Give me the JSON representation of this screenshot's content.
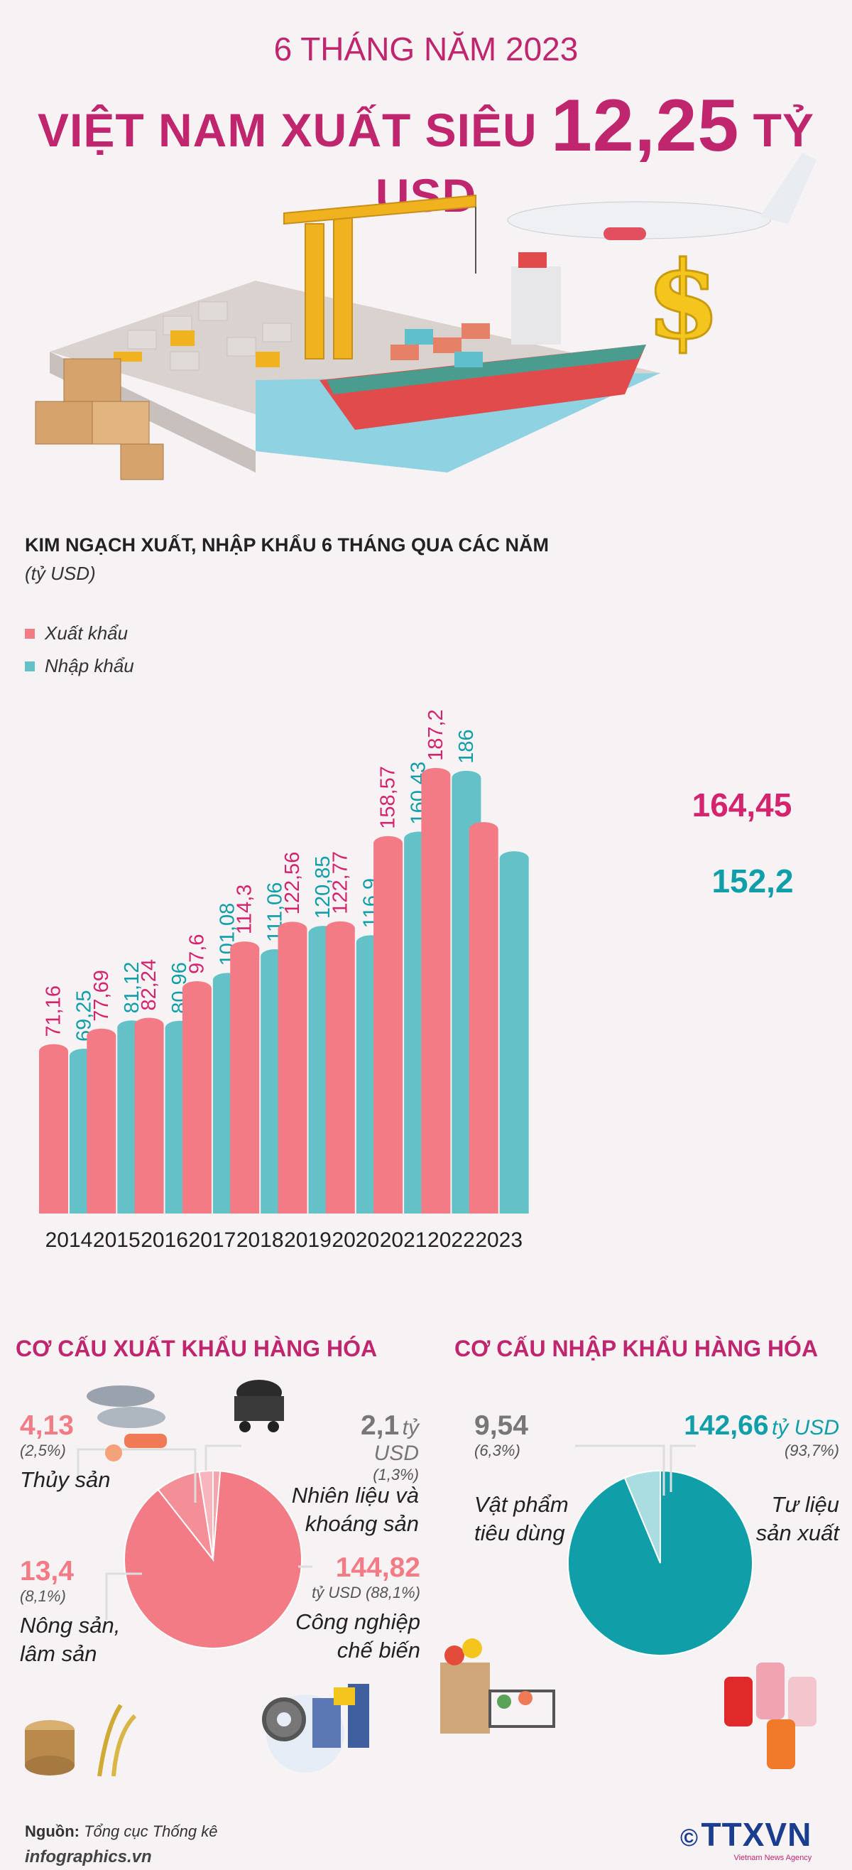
{
  "header": {
    "subtitle": "6 THÁNG NĂM 2023",
    "title_prefix": "VIỆT NAM XUẤT SIÊU",
    "title_value": "12,25",
    "title_unit": "TỶ USD"
  },
  "colors": {
    "export": "#f27b85",
    "import": "#64c1c8",
    "brand": "#c0266e",
    "import_pie": "#109fa9",
    "export_pie": "#f27b85"
  },
  "chart_data": [
    {
      "type": "bar",
      "title": "KIM NGẠCH XUẤT, NHẬP KHẨU 6 THÁNG QUA CÁC NĂM",
      "unit": "(tỷ USD)",
      "categories": [
        "2014",
        "2015",
        "2016",
        "2017",
        "2018",
        "2019",
        "2020",
        "2021",
        "2022",
        "2023"
      ],
      "series": [
        {
          "name": "Xuất khẩu",
          "values": [
            71.16,
            77.69,
            82.24,
            97.6,
            114.3,
            122.56,
            122.77,
            158.57,
            187.2,
            164.45
          ],
          "labels": [
            "71,16",
            "77,69",
            "82,24",
            "97,6",
            "114,3",
            "122,56",
            "122,77",
            "158,57",
            "187,2",
            "164,45"
          ]
        },
        {
          "name": "Nhập khẩu",
          "values": [
            69.25,
            81.12,
            80.96,
            101.08,
            111.06,
            120.85,
            116.9,
            160.43,
            186,
            152.2
          ],
          "labels": [
            "69,25",
            "81,12",
            "80,96",
            "101,08",
            "111,06",
            "120,85",
            "116,9",
            "160,43",
            "186",
            "152,2"
          ]
        }
      ],
      "ylim": [
        0,
        200
      ],
      "grid": false
    },
    {
      "type": "pie",
      "title": "CƠ CẤU XUẤT KHẨU HÀNG HÓA",
      "slices": [
        {
          "label": "Nhiên liệu và khoáng sản",
          "value": 2.1,
          "percent": 1.3,
          "value_text": "2,1",
          "percent_text": "(1,3%)"
        },
        {
          "label": "Công nghiệp chế biến",
          "value": 144.82,
          "percent": 88.1,
          "value_text": "144,82",
          "percent_text": "(88,1%)"
        },
        {
          "label": "Nông sản, lâm sản",
          "value": 13.4,
          "percent": 8.1,
          "value_text": "13,4",
          "percent_text": "(8,1%)"
        },
        {
          "label": "Thủy sản",
          "value": 4.13,
          "percent": 2.5,
          "value_text": "4,13",
          "percent_text": "(2,5%)"
        }
      ],
      "unit": "tỷ USD"
    },
    {
      "type": "pie",
      "title": "CƠ CẤU NHẬP KHẨU HÀNG HÓA",
      "slices": [
        {
          "label": "Tư liệu sản xuất",
          "value": 142.66,
          "percent": 93.7,
          "value_text": "142,66",
          "percent_text": "(93,7%)"
        },
        {
          "label": "Vật phẩm tiêu dùng",
          "value": 9.54,
          "percent": 6.3,
          "value_text": "9,54",
          "percent_text": "(6,3%)"
        }
      ],
      "unit": "tỷ USD"
    }
  ],
  "export_pie_text": {
    "aquatic": {
      "value": "4,13",
      "pct": "(2,5%)",
      "cap": "Thủy sản"
    },
    "fuel": {
      "value": "2,1",
      "unit": "tỷ USD",
      "pct": "(1,3%)",
      "cap1": "Nhiên liệu và",
      "cap2": "khoáng sản"
    },
    "agri": {
      "value": "13,4",
      "pct": "(8,1%)",
      "cap1": "Nông sản,",
      "cap2": "lâm sản"
    },
    "industry": {
      "value": "144,82",
      "unit_pct": "tỷ USD (88,1%)",
      "cap1": "Công nghiệp",
      "cap2": "chế biến"
    }
  },
  "import_pie_text": {
    "consumer": {
      "value": "9,54",
      "pct": "(6,3%)",
      "cap1": "Vật phẩm",
      "cap2": "tiêu dùng"
    },
    "production": {
      "value": "142,66",
      "unit": "tỷ USD",
      "pct": "(93,7%)",
      "cap1": "Tư liệu",
      "cap2": "sản xuất"
    }
  },
  "footer": {
    "source_label": "Nguồn:",
    "source": "Tổng cục Thống kê",
    "site": "infographics.vn",
    "logo_text": "TTXVN",
    "logo_sub": "Vietnam News Agency",
    "copyright": "©"
  },
  "icons": [
    "port-illustration-icon",
    "airplane-icon",
    "dollar-icon",
    "boxes-icon",
    "fish-icon",
    "coal-cart-icon",
    "wood-rice-icon",
    "gears-factory-icon",
    "groceries-icon",
    "thread-spools-icon"
  ]
}
